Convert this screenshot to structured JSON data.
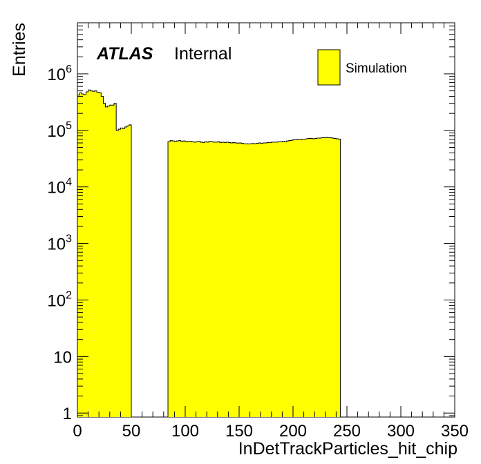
{
  "chart_data": {
    "type": "bar",
    "histogram": true,
    "yscale": "log",
    "xlabel": "InDetTrackParticles_hit_chip",
    "ylabel": "Entries",
    "xlim": [
      0,
      350
    ],
    "ylim": [
      0.85,
      8000000
    ],
    "bin_width": 2,
    "x_ticks": [
      0,
      50,
      100,
      150,
      200,
      250,
      300,
      350
    ],
    "y_ticks": [
      {
        "value": 1,
        "base": "1",
        "exp": ""
      },
      {
        "value": 10,
        "base": "10",
        "exp": ""
      },
      {
        "value": 100,
        "base": "10",
        "exp": "2"
      },
      {
        "value": 1000,
        "base": "10",
        "exp": "3"
      },
      {
        "value": 10000,
        "base": "10",
        "exp": "4"
      },
      {
        "value": 100000,
        "base": "10",
        "exp": "5"
      },
      {
        "value": 1000000,
        "base": "10",
        "exp": "6"
      }
    ],
    "fill_color": "#ffff00",
    "line_color": "#000000",
    "label": {
      "experiment": "ATLAS",
      "status": "Internal"
    },
    "legend": {
      "entries": [
        {
          "name": "Simulation",
          "color": "#ffff00"
        }
      ],
      "position": "top-right"
    },
    "series": [
      {
        "name": "Simulation",
        "segments": [
          {
            "x_start": 0,
            "values": [
              420000,
              460000,
              440000,
              430000,
              480000,
              520000,
              500000,
              490000,
              500000,
              470000,
              460000,
              400000,
              300000,
              260000,
              270000,
              280000,
              280000,
              300000,
              100000,
              105000,
              110000,
              108000,
              115000,
              120000,
              125000
            ]
          },
          {
            "x_start": 84,
            "values": [
              63000,
              66000,
              65000,
              64000,
              65000,
              66000,
              64000,
              65000,
              63000,
              64000,
              64000,
              63000,
              62000,
              63000,
              64000,
              62000,
              61000,
              63000,
              62000,
              64000,
              63000,
              62000,
              62000,
              63000,
              61000,
              62000,
              61000,
              62000,
              61000,
              60000,
              61000,
              60000,
              59500,
              60000,
              59000,
              58000,
              58000,
              57500,
              58000,
              58500,
              58000,
              59000,
              60000,
              59000,
              60000,
              60000,
              61000,
              61000,
              62000,
              62000,
              62000,
              63000,
              63000,
              64000,
              63000,
              65000,
              66000,
              67000,
              68000,
              68000,
              69000,
              69000,
              70000,
              70000,
              71000,
              72000,
              72000,
              71000,
              72000,
              73000,
              73000,
              74000,
              74000,
              75000,
              74000,
              74000,
              73000,
              72000,
              71000,
              70000
            ]
          }
        ]
      }
    ]
  }
}
